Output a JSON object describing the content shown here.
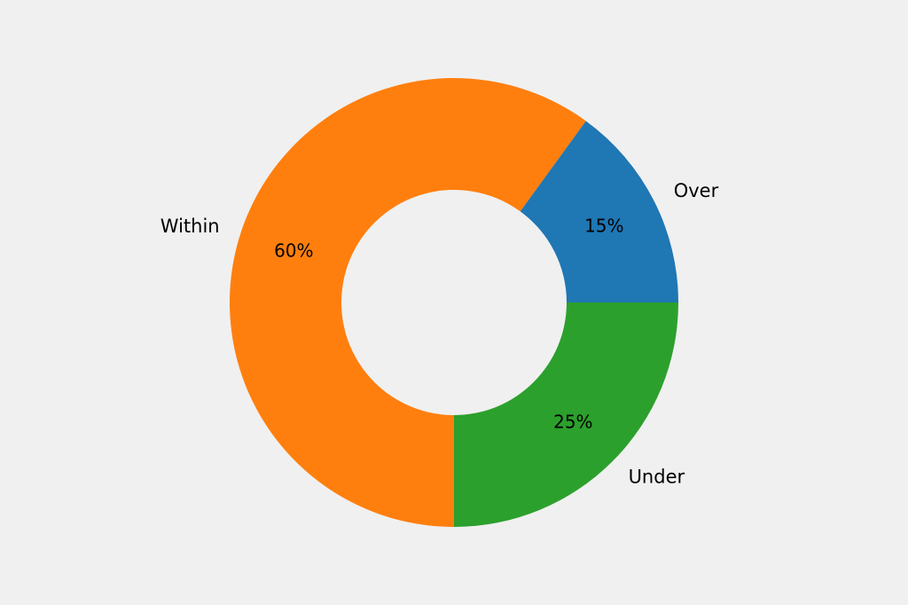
{
  "background": "#f0f0f0",
  "chart_data": {
    "type": "pie",
    "donut": true,
    "title": "",
    "start_angle_deg": 0,
    "direction": "counterclockwise",
    "slices": [
      {
        "label": "Over",
        "value": 15,
        "pct_label": "15%",
        "color": "#1f77b4"
      },
      {
        "label": "Within",
        "value": 60,
        "pct_label": "60%",
        "color": "#ff7f0e"
      },
      {
        "label": "Under",
        "value": 25,
        "pct_label": "25%",
        "color": "#2ca02c"
      }
    ]
  }
}
